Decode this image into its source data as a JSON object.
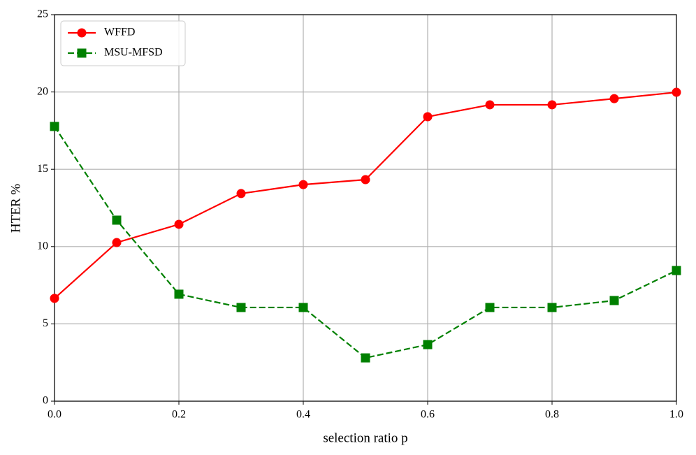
{
  "chart_data": {
    "type": "line",
    "x": [
      0.0,
      0.1,
      0.2,
      0.3,
      0.4,
      0.5,
      0.6,
      0.7,
      0.8,
      0.9,
      1.0
    ],
    "series": [
      {
        "name": "WFFD",
        "color": "#ff0000",
        "linestyle": "solid",
        "marker": "circle",
        "values": [
          6.65,
          10.26,
          11.44,
          13.43,
          14.01,
          14.33,
          18.4,
          19.17,
          19.17,
          19.57,
          19.98
        ]
      },
      {
        "name": "MSU-MFSD",
        "color": "#008000",
        "linestyle": "dashed",
        "marker": "square",
        "values": [
          17.77,
          11.71,
          6.92,
          6.06,
          6.06,
          2.8,
          3.66,
          6.06,
          6.06,
          6.51,
          8.45
        ]
      }
    ],
    "xlabel": "selection ratio p",
    "ylabel": "HTER %",
    "xlim": [
      0,
      1
    ],
    "ylim": [
      0,
      25
    ],
    "xticks": [
      {
        "value": 0,
        "label": "0.0"
      },
      0.2,
      0.4,
      0.6,
      0.8,
      {
        "value": 1,
        "label": "1.0"
      }
    ],
    "yticks": [
      0,
      5,
      10,
      15,
      20,
      25
    ],
    "grid": true,
    "legend": "upper-left"
  }
}
